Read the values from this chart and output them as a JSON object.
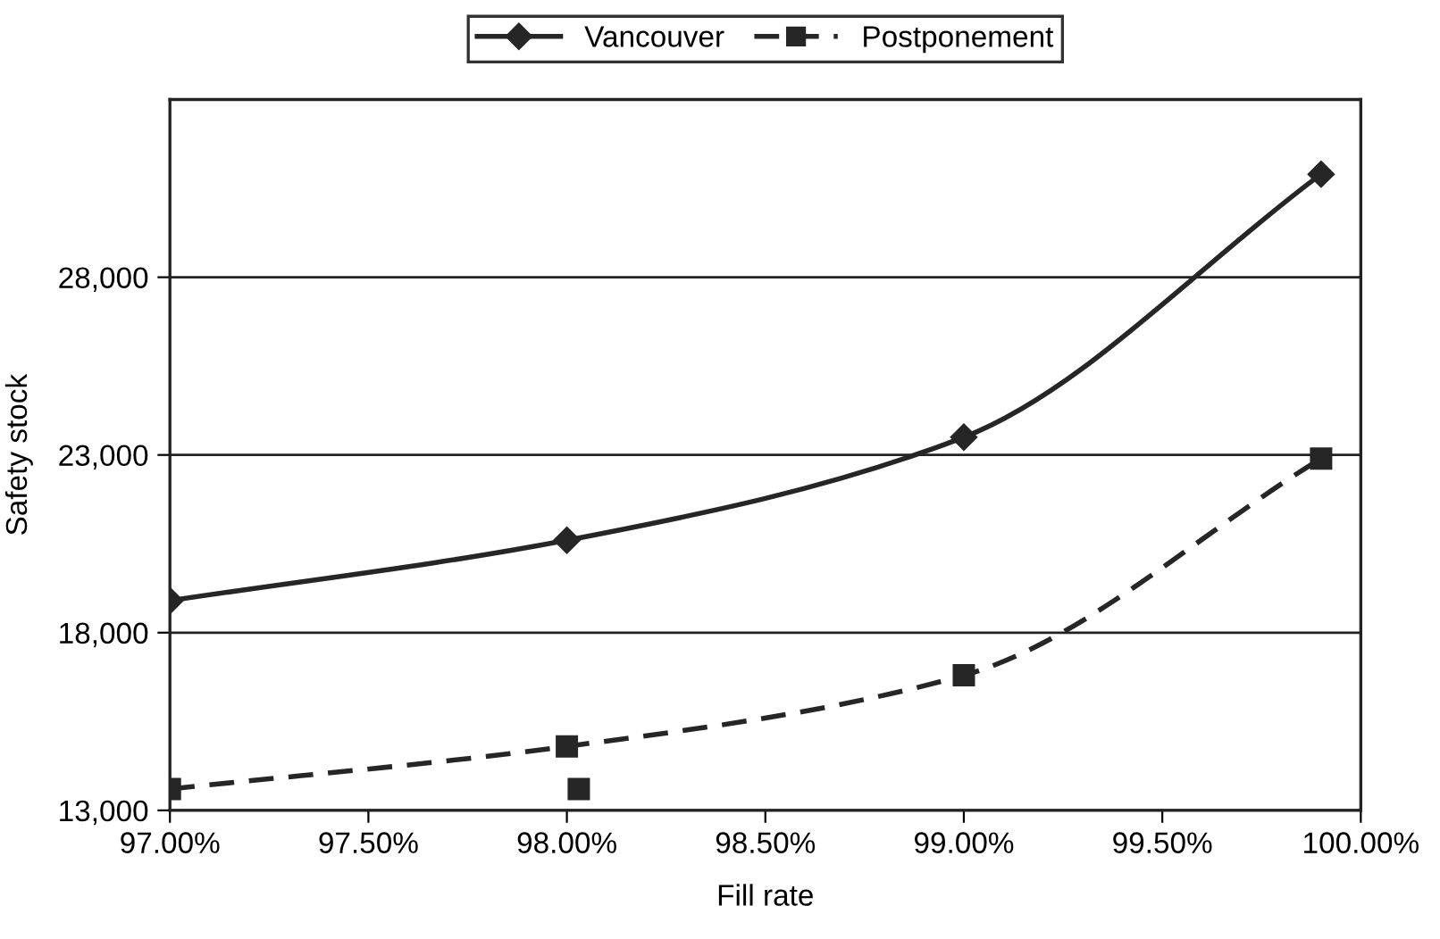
{
  "chart_data": {
    "type": "line",
    "xlabel": "Fill rate",
    "ylabel": "Safety stock",
    "xlim": [
      97.0,
      100.0
    ],
    "ylim": [
      13000,
      33000
    ],
    "xticks": [
      {
        "value": 97.0,
        "label": "97.00%"
      },
      {
        "value": 97.5,
        "label": "97.50%"
      },
      {
        "value": 98.0,
        "label": "98.00%"
      },
      {
        "value": 98.5,
        "label": "98.50%"
      },
      {
        "value": 99.0,
        "label": "99.00%"
      },
      {
        "value": 99.5,
        "label": "99.50%"
      },
      {
        "value": 100.0,
        "label": "100.00%"
      }
    ],
    "yticks": [
      {
        "value": 13000,
        "label": "13,000"
      },
      {
        "value": 18000,
        "label": "18,000"
      },
      {
        "value": 23000,
        "label": "23,000"
      },
      {
        "value": 28000,
        "label": "28,000"
      }
    ],
    "grid": "y",
    "legend": "top",
    "series": [
      {
        "name": "Vancouver",
        "color": "#262626",
        "x": [
          97.0,
          98.0,
          99.0,
          99.9
        ],
        "values": [
          18900,
          20600,
          23500,
          30900
        ],
        "marker": "diamond",
        "line_style": "solid"
      },
      {
        "name": "Postponement",
        "color": "#262626",
        "x": [
          97.0,
          98.0,
          99.0,
          99.9
        ],
        "values": [
          13600,
          14800,
          16800,
          22900
        ],
        "marker": "square",
        "line_style": "dashed"
      },
      {
        "type": "scatter",
        "color": "#262626",
        "x": [
          98.03
        ],
        "values": [
          13600
        ],
        "marker": "square"
      }
    ]
  }
}
